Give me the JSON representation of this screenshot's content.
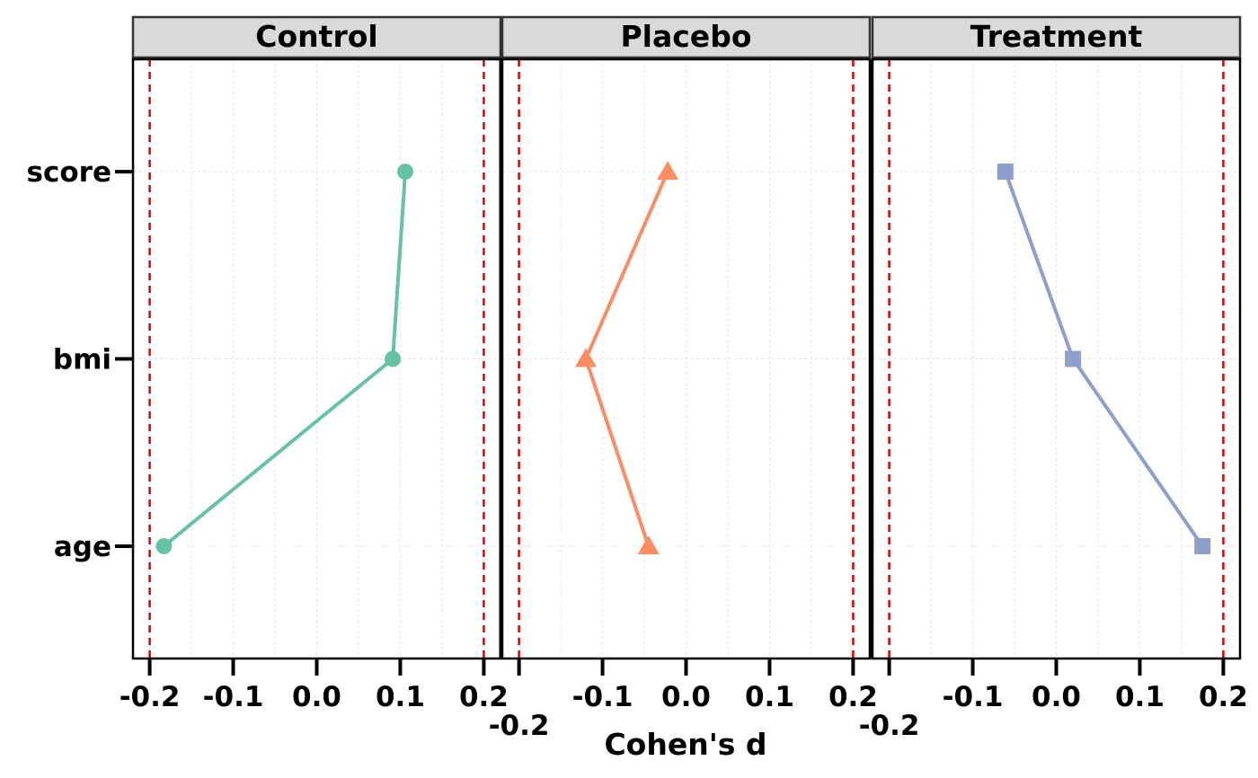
{
  "chart_data": {
    "type": "line",
    "xlabel": "Cohen's d",
    "ylabel": "",
    "xlim": [
      -0.22,
      0.22
    ],
    "x_ticks": [
      -0.2,
      -0.1,
      0.0,
      0.1,
      0.2
    ],
    "x_tick_labels": [
      "-0.2",
      "-0.1",
      "0.0",
      "0.1",
      "0.2"
    ],
    "categories": [
      "age",
      "bmi",
      "score"
    ],
    "reference_lines": {
      "values": [
        -0.2,
        0.2
      ],
      "style": "dashed",
      "color": "#e41a1c"
    },
    "grid": true,
    "facets": [
      {
        "name": "Control",
        "color": "#66c2a5",
        "shape": "circle",
        "values": {
          "age": -0.183,
          "bmi": 0.091,
          "score": 0.106
        }
      },
      {
        "name": "Placebo",
        "color": "#fc8d62",
        "shape": "triangle",
        "values": {
          "age": -0.045,
          "bmi": -0.12,
          "score": -0.022
        }
      },
      {
        "name": "Treatment",
        "color": "#8da0cb",
        "shape": "square",
        "values": {
          "age": 0.175,
          "bmi": 0.02,
          "score": -0.061
        }
      }
    ]
  }
}
